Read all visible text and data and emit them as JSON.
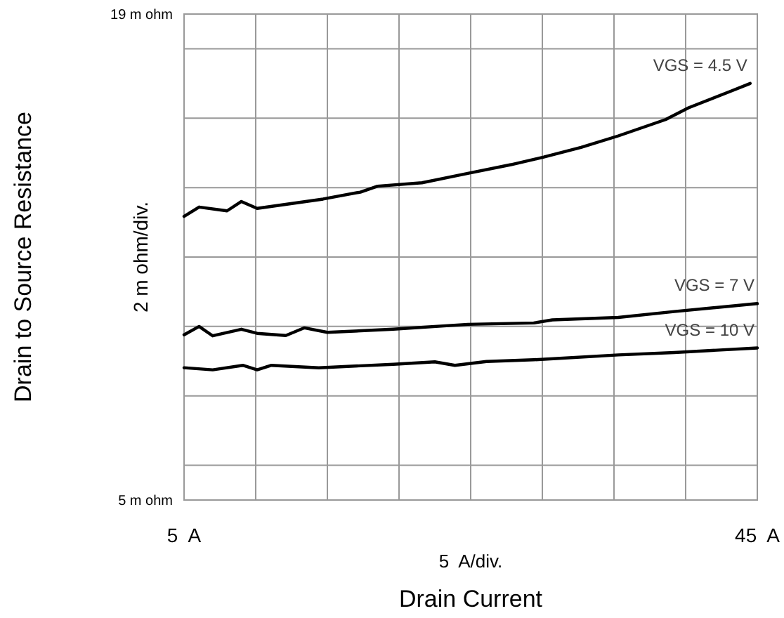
{
  "chart_data": {
    "type": "line",
    "xlabel": "Drain Current",
    "ylabel": "Drain to Source Resistance",
    "annotations": [
      "2 m ohm/div.",
      "5  A/div."
    ],
    "xlim": [
      5,
      45
    ],
    "xticks": [
      {
        "value": 5,
        "label": "5  A"
      },
      {
        "value": 10,
        "label": null
      },
      {
        "value": 15,
        "label": null
      },
      {
        "value": 20,
        "label": null
      },
      {
        "value": 25,
        "label": null
      },
      {
        "value": 30,
        "label": null
      },
      {
        "value": 35,
        "label": null
      },
      {
        "value": 40,
        "label": null
      },
      {
        "value": 45,
        "label": "45  A"
      }
    ],
    "ylim": [
      5,
      19
    ],
    "yticks": [
      {
        "value": 5,
        "label": "5 m ohm"
      },
      {
        "value": 6,
        "label": null
      },
      {
        "value": 8,
        "label": null
      },
      {
        "value": 10,
        "label": null
      },
      {
        "value": 12,
        "label": null
      },
      {
        "value": 14,
        "label": null
      },
      {
        "value": 16,
        "label": null
      },
      {
        "value": 18,
        "label": null
      },
      {
        "value": 19,
        "label": "19 m ohm"
      }
    ],
    "grid": true,
    "marker": "none",
    "line_style": "solid",
    "series": [
      {
        "name": "VGS = 4.5 V",
        "color": "#000000",
        "x": [
          5,
          6.05,
          8,
          9,
          10.1,
          14.7,
          17.3,
          18.5,
          21.6,
          24.8,
          27.8,
          30.1,
          32.7,
          35.3,
          38.6,
          40.2,
          43.1,
          44.5
        ],
        "values": [
          13.17,
          13.44,
          13.33,
          13.6,
          13.4,
          13.67,
          13.87,
          14.04,
          14.14,
          14.41,
          14.66,
          14.88,
          15.16,
          15.49,
          15.96,
          16.3,
          16.77,
          17.0
        ]
      },
      {
        "name": "VGS = 7 V",
        "color": "#000000",
        "x": [
          5,
          6.05,
          7,
          9,
          10.1,
          12.1,
          13.4,
          15,
          19.6,
          24.8,
          29.4,
          30.7,
          35.3,
          39.2,
          45
        ],
        "values": [
          9.76,
          10.0,
          9.73,
          9.92,
          9.8,
          9.74,
          9.96,
          9.83,
          9.92,
          10.06,
          10.1,
          10.19,
          10.26,
          10.43,
          10.66
        ]
      },
      {
        "name": "VGS = 10 V",
        "color": "#000000",
        "x": [
          5,
          7,
          9.1,
          10.1,
          11.1,
          14.4,
          19.6,
          22.5,
          23.9,
          26.1,
          29.4,
          35.3,
          39.2,
          45
        ],
        "values": [
          8.81,
          8.75,
          8.88,
          8.75,
          8.88,
          8.81,
          8.91,
          8.98,
          8.88,
          8.99,
          9.04,
          9.18,
          9.25,
          9.38
        ]
      }
    ]
  }
}
